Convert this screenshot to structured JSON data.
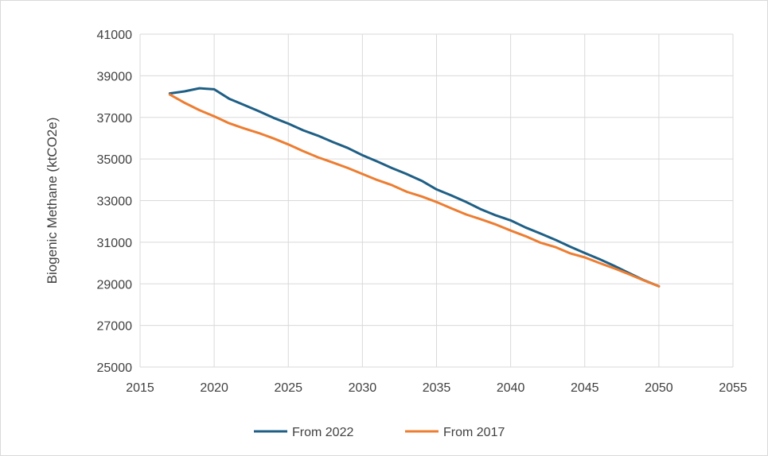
{
  "chart_data": {
    "type": "line",
    "title": "",
    "xlabel": "",
    "ylabel": "Biogenic Methane (ktCO2e)",
    "xlim": [
      2015,
      2055
    ],
    "ylim": [
      25000,
      41000
    ],
    "x_ticks": [
      "2015",
      "2020",
      "2025",
      "2030",
      "2035",
      "2040",
      "2045",
      "2050",
      "2055"
    ],
    "y_ticks": [
      "25000",
      "27000",
      "29000",
      "31000",
      "33000",
      "35000",
      "37000",
      "39000",
      "41000"
    ],
    "grid": true,
    "legend_position": "bottom",
    "series": [
      {
        "name": "From 2022",
        "color": "#1f5f85",
        "x": [
          2017,
          2018,
          2019,
          2020,
          2021,
          2022,
          2023,
          2024,
          2025,
          2026,
          2027,
          2028,
          2029,
          2030,
          2031,
          2032,
          2033,
          2034,
          2035,
          2036,
          2037,
          2038,
          2039,
          2040,
          2041,
          2042,
          2043,
          2044,
          2045,
          2046,
          2047,
          2048,
          2049,
          2050
        ],
        "y": [
          38150,
          38250,
          38400,
          38350,
          37900,
          37600,
          37300,
          36980,
          36700,
          36380,
          36120,
          35820,
          35530,
          35180,
          34880,
          34560,
          34270,
          33950,
          33540,
          33250,
          32930,
          32580,
          32290,
          32050,
          31710,
          31420,
          31120,
          30790,
          30480,
          30180,
          29860,
          29510,
          29170,
          28880
        ]
      },
      {
        "name": "From 2017",
        "color": "#ed7d31",
        "x": [
          2017,
          2018,
          2019,
          2020,
          2021,
          2022,
          2023,
          2024,
          2025,
          2026,
          2027,
          2028,
          2029,
          2030,
          2031,
          2032,
          2033,
          2034,
          2035,
          2036,
          2037,
          2038,
          2039,
          2040,
          2041,
          2042,
          2043,
          2044,
          2045,
          2046,
          2047,
          2048,
          2049,
          2050
        ],
        "y": [
          38100,
          37700,
          37350,
          37050,
          36720,
          36470,
          36250,
          35990,
          35700,
          35380,
          35080,
          34830,
          34570,
          34280,
          33990,
          33740,
          33420,
          33200,
          32930,
          32630,
          32330,
          32100,
          31850,
          31560,
          31290,
          30980,
          30770,
          30470,
          30270,
          30000,
          29740,
          29460,
          29160,
          28880
        ]
      }
    ]
  }
}
